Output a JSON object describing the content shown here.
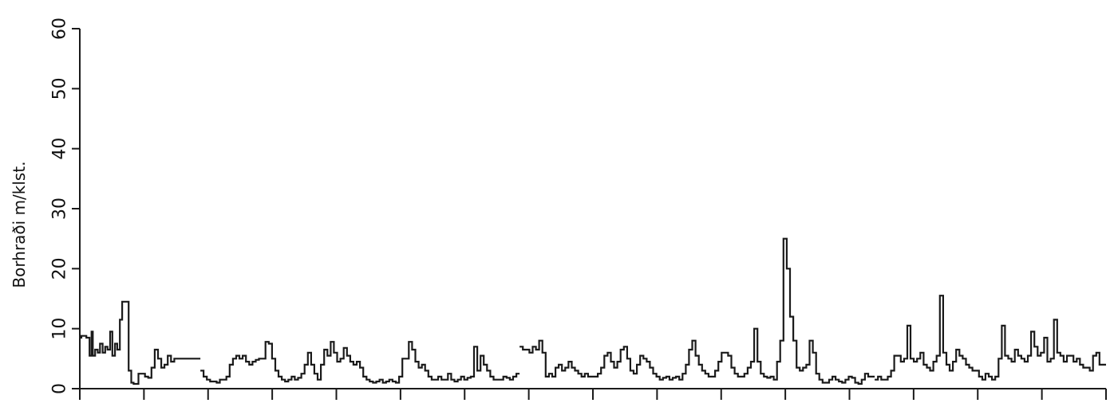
{
  "chart_data": {
    "type": "line",
    "title": "",
    "xlabel": "",
    "ylabel": "Borhraði m/klst.",
    "ylim": [
      0,
      60
    ],
    "y_ticks": [
      "0",
      "10",
      "20",
      "30",
      "40",
      "50",
      "60"
    ],
    "x_tick_count": 17,
    "grid": false,
    "colors": {
      "line": "#1a1a1a",
      "axis": "#1a1a1a"
    },
    "series": [
      {
        "segments": [
          {
            "x": [
              0,
              0.5,
              1,
              2,
              3,
              3.6,
              4,
              4.7,
              5.5,
              6.2,
              7,
              7.8,
              8.5,
              9.3,
              10,
              10.8,
              11.5,
              12.3,
              13,
              14,
              15,
              15.8,
              16.5,
              17.3,
              18,
              19,
              20,
              21,
              22,
              23,
              24,
              25,
              26,
              27,
              28,
              29,
              30,
              31,
              32,
              33,
              34,
              35,
              36
            ],
            "y": [
              8.5,
              8.8,
              8.8,
              8.5,
              5.5,
              9.5,
              5.5,
              6.5,
              6.0,
              7.5,
              6.0,
              7.0,
              6.5,
              9.5,
              5.5,
              7.5,
              6.5,
              11.5,
              14.5,
              14.5,
              3.0,
              1.0,
              0.8,
              0.8,
              2.5,
              2.5,
              2.0,
              1.8,
              3.5,
              6.5,
              5.0,
              3.5,
              4.0,
              5.5,
              4.5,
              5.0,
              5.0,
              5.0,
              5.0,
              5.0,
              5.0,
              5.0,
              5.0
            ]
          },
          {
            "x": [
              37,
              38,
              39,
              40,
              41,
              42,
              43,
              44,
              45,
              46,
              47,
              48,
              49,
              50,
              51,
              52,
              53,
              54,
              55,
              56,
              57,
              58,
              59,
              60,
              61,
              62,
              63,
              64,
              65,
              66,
              67,
              68,
              69,
              70,
              71,
              72,
              73,
              74,
              75,
              76,
              77,
              78,
              79,
              80,
              81,
              82,
              83,
              84,
              85,
              86,
              87,
              88,
              89,
              90,
              91,
              92,
              93,
              94,
              95,
              96,
              97,
              98,
              99,
              100,
              101,
              102,
              103,
              104,
              105,
              106,
              107,
              108,
              109,
              110,
              111,
              112,
              113,
              114,
              115,
              116,
              117,
              118,
              119,
              120,
              121,
              122,
              123,
              124,
              125,
              126,
              127,
              128,
              129,
              130,
              131,
              132,
              133,
              134
            ],
            "y": [
              3.0,
              2.0,
              1.5,
              1.2,
              1.2,
              1.0,
              1.5,
              1.5,
              2.0,
              4.0,
              5.0,
              5.5,
              5.0,
              5.5,
              4.5,
              4.0,
              4.5,
              4.8,
              5.0,
              5.0,
              7.8,
              7.5,
              5.0,
              3.0,
              2.0,
              1.5,
              1.2,
              1.5,
              2.0,
              1.5,
              1.8,
              2.5,
              4.0,
              6.0,
              4.0,
              2.5,
              1.5,
              4.0,
              6.5,
              5.5,
              7.8,
              6.0,
              4.5,
              5.0,
              6.8,
              5.5,
              4.5,
              4.0,
              4.5,
              3.5,
              2.0,
              1.5,
              1.2,
              1.0,
              1.2,
              1.5,
              1.0,
              1.2,
              1.5,
              1.2,
              1.0,
              2.0,
              5.0,
              5.0,
              7.8,
              6.5,
              4.5,
              3.5,
              4.0,
              3.0,
              2.0,
              1.5,
              1.5,
              2.0,
              1.5,
              1.5,
              2.5,
              1.5,
              1.2,
              1.5,
              2.0,
              1.5,
              1.8,
              2.0,
              7.0,
              3.0,
              5.5,
              4.0,
              3.0,
              2.0,
              1.5,
              1.5,
              1.5,
              2.0,
              1.8,
              1.5,
              2.0,
              2.5
            ]
          },
          {
            "x": [
              135,
              136,
              137,
              138,
              139,
              140,
              141,
              142,
              143,
              144,
              145,
              146,
              147,
              148,
              149,
              150,
              151,
              152,
              153,
              154,
              155,
              156,
              157,
              158,
              159,
              160,
              161,
              162,
              163,
              164,
              165,
              166,
              167,
              168,
              169,
              170,
              171,
              172,
              173,
              174,
              175,
              176,
              177,
              178,
              179,
              180,
              181,
              182,
              183,
              184,
              185,
              186,
              187,
              188,
              189,
              190,
              191,
              192,
              193,
              194,
              195,
              196,
              197,
              198,
              199,
              200,
              201,
              202,
              203,
              204,
              205,
              206,
              207,
              208,
              209,
              210,
              211,
              212,
              213,
              214,
              215,
              216,
              217,
              218,
              219,
              220,
              221,
              222,
              223,
              224,
              225,
              226,
              227,
              228,
              229,
              230,
              231,
              232,
              233,
              234,
              235,
              236,
              237,
              238,
              239,
              240,
              241,
              242,
              243
            ],
            "y": [
              7.0,
              6.5,
              6.5,
              6.0,
              7.0,
              6.5,
              8.0,
              6.0,
              2.0,
              2.5,
              2.0,
              3.5,
              4.0,
              3.0,
              3.5,
              4.5,
              3.5,
              3.0,
              2.5,
              2.0,
              2.5,
              2.0,
              2.0,
              2.0,
              2.5,
              3.5,
              5.5,
              6.0,
              4.5,
              3.5,
              4.5,
              6.5,
              7.0,
              5.0,
              3.0,
              2.5,
              4.0,
              5.5,
              5.0,
              4.5,
              3.5,
              2.5,
              2.0,
              1.5,
              1.8,
              2.0,
              1.5,
              1.8,
              2.0,
              1.5,
              2.5,
              4.0,
              6.5,
              8.0,
              5.5,
              4.0,
              3.0,
              2.5,
              2.0,
              2.0,
              3.0,
              4.5,
              6.0,
              6.0,
              5.5,
              3.5,
              2.5,
              2.0,
              2.0,
              2.5,
              3.5,
              4.5,
              10.0,
              4.5,
              2.5,
              2.0,
              1.8,
              2.0,
              1.5,
              4.5,
              8.0,
              25.0,
              20.0,
              12.0,
              8.0,
              3.5,
              3.0,
              3.5,
              4.0,
              8.0,
              6.0,
              2.5,
              1.5,
              1.0,
              1.0,
              1.5,
              2.0,
              1.5,
              1.2,
              1.0,
              1.5,
              2.0,
              1.8,
              1.0,
              0.8,
              1.5,
              2.5,
              2.0,
              2.0
            ]
          },
          {
            "x": [
              244,
              245,
              246,
              247,
              248,
              249,
              250,
              251,
              252,
              253,
              254,
              255,
              256,
              257,
              258,
              259,
              260,
              261,
              262,
              263,
              264,
              265,
              266,
              267,
              268,
              269,
              270,
              271,
              272,
              273,
              274,
              275,
              276,
              277,
              278,
              279,
              280,
              281,
              282,
              283,
              284,
              285,
              286,
              287,
              288,
              289,
              290,
              291,
              292,
              293,
              294,
              295,
              296,
              297,
              298,
              299,
              300,
              301,
              302,
              303,
              304,
              305,
              306,
              307,
              308,
              309,
              310,
              311,
              312,
              313,
              314
            ],
            "y": [
              1.5,
              2.0,
              1.5,
              1.5,
              2.0,
              3.0,
              5.5,
              5.5,
              4.5,
              5.0,
              10.5,
              5.0,
              4.5,
              5.0,
              6.0,
              4.0,
              3.5,
              3.0,
              4.5,
              5.5,
              15.5,
              6.0,
              4.0,
              3.0,
              4.5,
              6.5,
              5.5,
              5.0,
              4.0,
              3.5,
              3.0,
              3.0,
              2.0,
              1.5,
              2.5,
              2.0,
              1.5,
              2.0,
              5.0,
              10.5,
              5.5,
              5.0,
              4.5,
              6.5,
              5.5,
              5.0,
              4.5,
              5.5,
              9.5,
              7.0,
              5.5,
              6.0,
              8.5,
              4.5,
              5.0,
              11.5,
              6.0,
              5.5,
              4.5,
              5.5,
              5.5,
              4.5,
              5.0,
              4.0,
              3.5,
              3.5,
              3.0,
              5.5,
              6.0,
              4.0,
              4.0
            ]
          }
        ]
      }
    ]
  }
}
